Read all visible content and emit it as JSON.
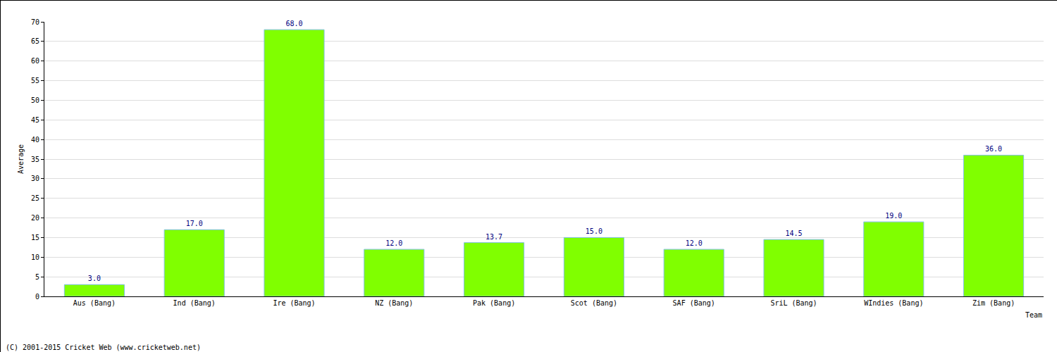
{
  "chart_data": {
    "type": "bar",
    "x_label": "Team",
    "y_label": "Average",
    "annotations": [
      "(C) 2001-2015 Cricket Web (www.cricketweb.net)"
    ],
    "categories": [
      "Aus (Bang)",
      "Ind (Bang)",
      "Ire (Bang)",
      "NZ (Bang)",
      "Pak (Bang)",
      "Scot (Bang)",
      "SAF (Bang)",
      "SriL (Bang)",
      "WIndies (Bang)",
      "Zim (Bang)"
    ],
    "values": [
      3.0,
      17.0,
      68.0,
      12.0,
      13.7,
      15.0,
      12.0,
      14.5,
      19.0,
      36.0
    ],
    "value_labels": [
      "3.0",
      "17.0",
      "68.0",
      "12.0",
      "13.7",
      "15.0",
      "12.0",
      "14.5",
      "19.0",
      "36.0"
    ],
    "color": "#80ff00",
    "ylim": [
      0,
      70
    ],
    "yticks": [
      0,
      5,
      10,
      15,
      20,
      25,
      30,
      35,
      40,
      45,
      50,
      55,
      60,
      65,
      70
    ],
    "grid": true,
    "data_labels": true
  }
}
